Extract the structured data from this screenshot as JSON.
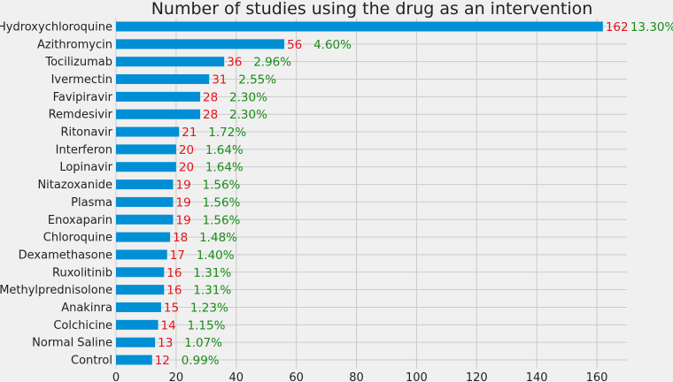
{
  "chart_data": {
    "type": "bar",
    "orientation": "horizontal",
    "title": "Number of studies using the drug as an intervention",
    "xlabel": "",
    "ylabel": "",
    "xlim": [
      0,
      170
    ],
    "xticks": [
      "0",
      "20",
      "40",
      "60",
      "80",
      "100",
      "120",
      "140",
      "160"
    ],
    "grid": true,
    "legend": "none",
    "colors": {
      "bar": "#008fd5",
      "count_label": "#e5141b",
      "percent_label": "#1a8c1a",
      "background": "#f0f0f0",
      "grid": "#cbcbcb"
    },
    "categories": [
      "Hydroxychloroquine",
      "Azithromycin",
      "Tocilizumab",
      "Ivermectin",
      "Favipiravir",
      "Remdesivir",
      "Ritonavir",
      "Interferon",
      "Lopinavir",
      "Nitazoxanide",
      "Plasma",
      "Enoxaparin",
      "Chloroquine",
      "Dexamethasone",
      "Ruxolitinib",
      "Methylprednisolone",
      "Anakinra",
      "Colchicine",
      "Normal Saline",
      "Control"
    ],
    "values": [
      162,
      56,
      36,
      31,
      28,
      28,
      21,
      20,
      20,
      19,
      19,
      19,
      18,
      17,
      16,
      16,
      15,
      14,
      13,
      12
    ],
    "percent_labels": [
      "13.30%",
      "4.60%",
      "2.96%",
      "2.55%",
      "2.30%",
      "2.30%",
      "1.72%",
      "1.64%",
      "1.64%",
      "1.56%",
      "1.56%",
      "1.56%",
      "1.48%",
      "1.40%",
      "1.31%",
      "1.31%",
      "1.23%",
      "1.15%",
      "1.07%",
      "0.99%"
    ]
  }
}
